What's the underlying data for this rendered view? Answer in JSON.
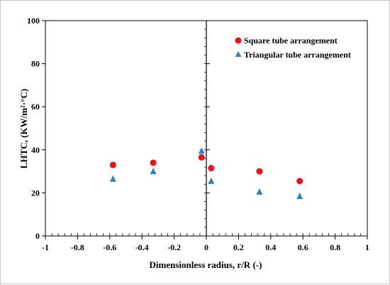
{
  "chart_data": {
    "type": "scatter",
    "title": "",
    "xlabel": "Dimensionless radius, r/R (-)",
    "ylabel": "LHTC, (KW/m²·°C)",
    "xlim": [
      -1,
      1
    ],
    "ylim": [
      0,
      100
    ],
    "x_ticks": [
      "-1",
      "-0.8",
      "-0.6",
      "-0.4",
      "-0.2",
      "0",
      "0.2",
      "0.4",
      "0.6",
      "0.8",
      "1"
    ],
    "y_ticks": [
      "0",
      "20",
      "40",
      "60",
      "80",
      "100"
    ],
    "legend_position": "top-right",
    "grid": false,
    "series": [
      {
        "name": "Square tube arrangement",
        "marker": "circle",
        "color": "#e8141c",
        "x": [
          -0.58,
          -0.33,
          -0.03,
          0.03,
          0.33,
          0.58
        ],
        "y": [
          33,
          34,
          36.5,
          31.5,
          30,
          25.5
        ]
      },
      {
        "name": "Triangular tube arrangement",
        "marker": "triangle",
        "color": "#2f80c8",
        "x": [
          -0.58,
          -0.33,
          -0.03,
          0.03,
          0.33,
          0.58
        ],
        "y": [
          26.5,
          30,
          39.5,
          25.5,
          20.5,
          18.5
        ]
      }
    ]
  }
}
